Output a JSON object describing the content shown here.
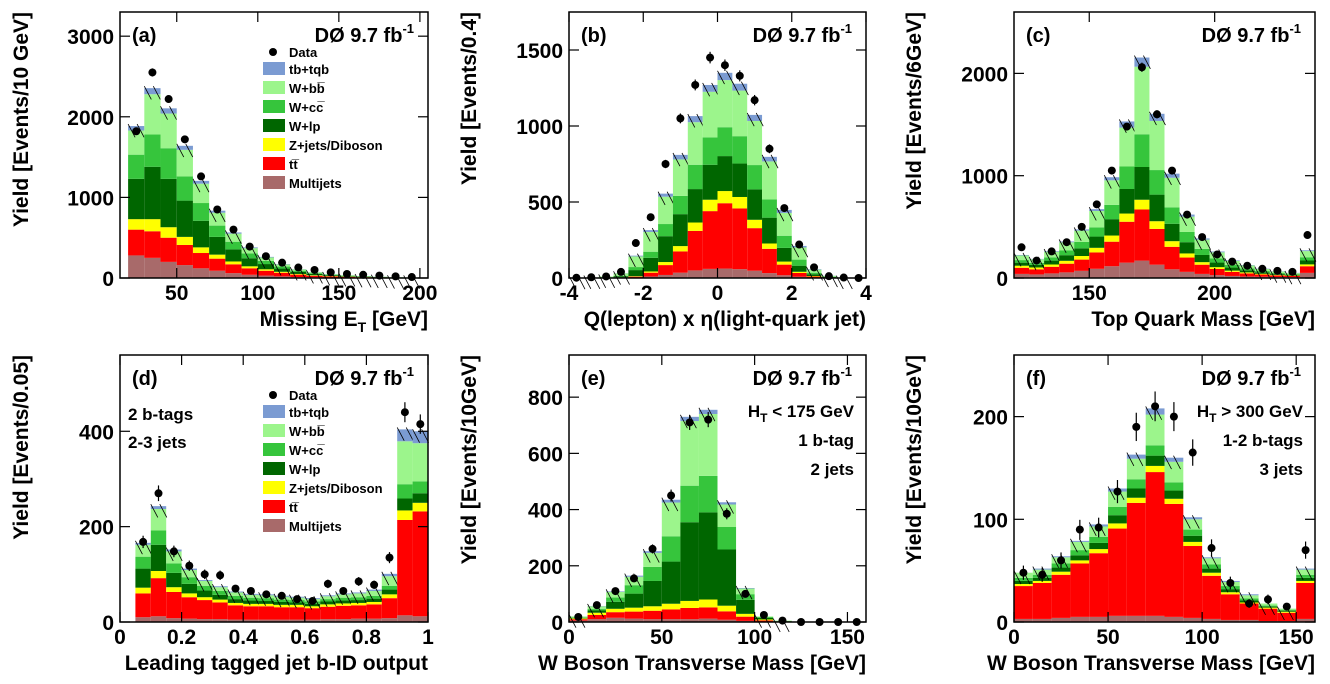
{
  "colors": {
    "tb": "#7b9bd2",
    "wbb": "#9cf58c",
    "wcc": "#36c53c",
    "wlp": "#006600",
    "zjets": "#ffff00",
    "ttbar": "#ff0000",
    "multijets": "#a86a6a"
  },
  "legend_labels": {
    "data": "Data",
    "tb": "tb+tqb",
    "wbb": "W+bb̅",
    "wcc": "W+cc̅",
    "wlp": "W+lp",
    "zjets": "Z+jets/Diboson",
    "ttbar": "tt̅",
    "multijets": "Multijets"
  },
  "chart_data": [
    {
      "type": "bar",
      "stacked": true,
      "panel_label": "(a)",
      "experiment": "DØ  9.7 fb",
      "lumi_exp": "-1",
      "ylabel": "Yield [Events/10 GeV]",
      "xlabel": "Missing E",
      "xlabel_sub": "T",
      "xlabel_tail": " [GeV]",
      "xlim": [
        15,
        205
      ],
      "ylim": [
        0,
        3300
      ],
      "xticks": [
        50,
        100,
        150,
        200
      ],
      "yticks": [
        0,
        1000,
        2000,
        3000
      ],
      "bin_edges": [
        20,
        30,
        40,
        50,
        60,
        70,
        80,
        90,
        100,
        110,
        120,
        130,
        140,
        150,
        160,
        170,
        180,
        190,
        200
      ],
      "stack": {
        "multijets": [
          280,
          250,
          200,
          160,
          120,
          90,
          60,
          40,
          30,
          20,
          12,
          8,
          5,
          4,
          3,
          2,
          1,
          1
        ],
        "ttbar": [
          320,
          330,
          300,
          250,
          190,
          150,
          110,
          80,
          60,
          45,
          30,
          20,
          15,
          10,
          7,
          5,
          3,
          2
        ],
        "zjets": [
          130,
          150,
          130,
          100,
          70,
          50,
          35,
          25,
          18,
          12,
          8,
          6,
          4,
          3,
          2,
          2,
          1,
          1
        ],
        "wlp": [
          500,
          650,
          600,
          450,
          330,
          220,
          150,
          100,
          65,
          40,
          25,
          16,
          10,
          7,
          5,
          3,
          2,
          1
        ],
        "wcc": [
          300,
          400,
          380,
          300,
          220,
          140,
          95,
          60,
          40,
          25,
          16,
          10,
          7,
          5,
          3,
          2,
          1,
          1
        ],
        "wbb": [
          300,
          500,
          430,
          330,
          240,
          160,
          100,
          65,
          42,
          25,
          16,
          10,
          7,
          5,
          3,
          2,
          1,
          1
        ],
        "tb": [
          55,
          75,
          65,
          50,
          35,
          25,
          15,
          10,
          7,
          5,
          3,
          2,
          2,
          1,
          1,
          1,
          0,
          0
        ]
      },
      "data": [
        1820,
        2550,
        2220,
        1720,
        1260,
        850,
        600,
        390,
        270,
        190,
        130,
        100,
        70,
        50,
        40,
        30,
        20,
        12
      ],
      "legend": true,
      "legend_pos": "top-right",
      "annotations": []
    },
    {
      "type": "bar",
      "stacked": true,
      "panel_label": "(b)",
      "experiment": "DØ  9.7 fb",
      "lumi_exp": "-1",
      "ylabel": "Yield [Events/0.4]",
      "xlabel": "Q(lepton) x η(light-quark jet)",
      "xlabel_sub": "",
      "xlabel_tail": "",
      "xlim": [
        -4,
        4
      ],
      "ylim": [
        0,
        1750
      ],
      "xticks": [
        -4,
        -2,
        0,
        2,
        4
      ],
      "yticks": [
        0,
        500,
        1000,
        1500
      ],
      "bin_edges": [
        -4,
        -3.6,
        -3.2,
        -2.8,
        -2.4,
        -2,
        -1.6,
        -1.2,
        -0.8,
        -0.4,
        0,
        0.4,
        0.8,
        1.2,
        1.6,
        2,
        2.4,
        2.8,
        3.2,
        3.6,
        4
      ],
      "stack": {
        "multijets": [
          0,
          0,
          0,
          1,
          3,
          10,
          20,
          35,
          50,
          60,
          62,
          58,
          48,
          32,
          18,
          8,
          3,
          1,
          0,
          0
        ],
        "ttbar": [
          0,
          0,
          1,
          2,
          6,
          25,
          65,
          140,
          260,
          380,
          430,
          400,
          280,
          160,
          70,
          25,
          7,
          2,
          0,
          0
        ],
        "zjets": [
          0,
          0,
          0,
          1,
          3,
          8,
          20,
          35,
          55,
          75,
          80,
          75,
          55,
          35,
          20,
          8,
          3,
          1,
          0,
          0
        ],
        "wlp": [
          0,
          1,
          3,
          8,
          40,
          90,
          170,
          210,
          220,
          230,
          230,
          220,
          200,
          170,
          90,
          40,
          12,
          3,
          1,
          0
        ],
        "wcc": [
          0,
          0,
          1,
          3,
          20,
          40,
          80,
          120,
          160,
          180,
          190,
          180,
          160,
          120,
          80,
          40,
          10,
          2,
          0,
          0
        ],
        "wbb": [
          1,
          2,
          5,
          15,
          70,
          130,
          180,
          240,
          280,
          300,
          310,
          300,
          290,
          250,
          150,
          80,
          20,
          5,
          1,
          0
        ],
        "tb": [
          0,
          0,
          0,
          1,
          5,
          12,
          20,
          30,
          40,
          45,
          48,
          45,
          40,
          30,
          20,
          10,
          3,
          1,
          0,
          0
        ]
      },
      "data": [
        2,
        5,
        10,
        40,
        230,
        400,
        750,
        1050,
        1270,
        1450,
        1400,
        1330,
        1170,
        850,
        460,
        220,
        70,
        12,
        3,
        0
      ],
      "legend": false,
      "legend_pos": "",
      "annotations": []
    },
    {
      "type": "bar",
      "stacked": true,
      "panel_label": "(c)",
      "experiment": "DØ  9.7 fb",
      "lumi_exp": "-1",
      "ylabel": "Yield [Events/6GeV]",
      "xlabel": "Top Quark Mass [GeV]",
      "xlabel_sub": "",
      "xlabel_tail": "",
      "xlim": [
        120,
        240
      ],
      "ylim": [
        0,
        2600
      ],
      "xticks": [
        150,
        200
      ],
      "yticks": [
        0,
        1000,
        2000
      ],
      "bin_edges": [
        120,
        126,
        132,
        138,
        144,
        150,
        156,
        162,
        168,
        174,
        180,
        186,
        192,
        198,
        204,
        210,
        216,
        222,
        228,
        234,
        240
      ],
      "stack": {
        "multijets": [
          40,
          35,
          45,
          55,
          70,
          90,
          115,
          150,
          170,
          130,
          85,
          60,
          40,
          28,
          20,
          15,
          12,
          10,
          8,
          50
        ],
        "ttbar": [
          60,
          50,
          65,
          85,
          110,
          160,
          240,
          400,
          500,
          350,
          220,
          140,
          90,
          60,
          40,
          30,
          22,
          16,
          12,
          65
        ],
        "zjets": [
          20,
          18,
          22,
          28,
          35,
          45,
          60,
          80,
          95,
          75,
          55,
          40,
          25,
          18,
          12,
          10,
          7,
          5,
          4,
          18
        ],
        "wlp": [
          30,
          25,
          38,
          55,
          75,
          110,
          160,
          240,
          320,
          260,
          170,
          110,
          70,
          45,
          30,
          20,
          15,
          10,
          8,
          38
        ],
        "wcc": [
          25,
          20,
          32,
          46,
          63,
          90,
          140,
          220,
          320,
          240,
          160,
          100,
          60,
          40,
          25,
          18,
          12,
          8,
          6,
          32
        ],
        "wbb": [
          45,
          35,
          55,
          80,
          110,
          160,
          240,
          380,
          660,
          480,
          290,
          150,
          90,
          60,
          40,
          30,
          20,
          14,
          10,
          60
        ],
        "tb": [
          5,
          4,
          6,
          8,
          12,
          18,
          30,
          60,
          90,
          70,
          40,
          20,
          12,
          8,
          6,
          4,
          3,
          2,
          2,
          8
        ]
      },
      "data": [
        300,
        170,
        260,
        350,
        500,
        720,
        1050,
        1480,
        2060,
        1600,
        1050,
        620,
        400,
        230,
        160,
        120,
        90,
        70,
        60,
        420
      ],
      "legend": false,
      "legend_pos": "",
      "annotations": []
    },
    {
      "type": "bar",
      "stacked": true,
      "panel_label": "(d)",
      "experiment": "DØ  9.7 fb",
      "lumi_exp": "-1",
      "ylabel": "Yield [Events/0.05]",
      "xlabel": "Leading tagged jet b-ID output",
      "xlabel_sub": "",
      "xlabel_tail": "",
      "xlim": [
        0,
        1
      ],
      "ylim": [
        0,
        560
      ],
      "xticks": [
        0,
        0.2,
        0.4,
        0.6,
        0.8,
        1
      ],
      "yticks": [
        0,
        200,
        400
      ],
      "bin_edges": [
        0.05,
        0.1,
        0.15,
        0.2,
        0.25,
        0.3,
        0.35,
        0.4,
        0.45,
        0.5,
        0.55,
        0.6,
        0.65,
        0.7,
        0.75,
        0.8,
        0.85,
        0.9,
        0.95,
        1.0
      ],
      "stack": {
        "multijets": [
          10,
          12,
          8,
          7,
          6,
          6,
          5,
          5,
          5,
          5,
          5,
          5,
          6,
          6,
          7,
          7,
          8,
          14,
          12
        ],
        "ttbar": [
          50,
          80,
          55,
          45,
          40,
          35,
          30,
          28,
          28,
          26,
          26,
          24,
          26,
          28,
          28,
          30,
          42,
          200,
          220
        ],
        "zjets": [
          12,
          15,
          10,
          8,
          6,
          6,
          5,
          5,
          5,
          5,
          5,
          4,
          5,
          5,
          5,
          5,
          8,
          20,
          18
        ],
        "wlp": [
          40,
          55,
          30,
          20,
          14,
          10,
          8,
          7,
          6,
          6,
          5,
          5,
          6,
          6,
          6,
          7,
          10,
          25,
          20
        ],
        "wcc": [
          25,
          30,
          20,
          14,
          10,
          8,
          7,
          6,
          6,
          5,
          5,
          5,
          5,
          6,
          6,
          6,
          8,
          30,
          25
        ],
        "wbb": [
          25,
          45,
          25,
          15,
          10,
          8,
          7,
          6,
          6,
          6,
          5,
          5,
          6,
          7,
          8,
          10,
          20,
          90,
          80
        ],
        "tb": [
          4,
          6,
          4,
          3,
          2,
          2,
          2,
          2,
          2,
          2,
          2,
          2,
          2,
          2,
          2,
          3,
          5,
          25,
          25
        ]
      },
      "data": [
        168,
        270,
        148,
        118,
        100,
        98,
        70,
        65,
        58,
        55,
        48,
        44,
        80,
        65,
        85,
        78,
        135,
        440,
        415
      ],
      "legend": true,
      "legend_pos": "top-right",
      "annotations": [
        "2 b-tags",
        "2-3 jets"
      ]
    },
    {
      "type": "bar",
      "stacked": true,
      "panel_label": "(e)",
      "experiment": "DØ  9.7 fb",
      "lumi_exp": "-1",
      "ylabel": "Yield [Events/10GeV]",
      "xlabel": "W Boson Transverse Mass [GeV]",
      "xlabel_sub": "",
      "xlabel_tail": "",
      "xlim": [
        0,
        160
      ],
      "ylim": [
        0,
        950
      ],
      "xticks": [
        0,
        50,
        100,
        150
      ],
      "yticks": [
        0,
        200,
        400,
        600,
        800
      ],
      "bin_edges": [
        0,
        10,
        20,
        30,
        40,
        50,
        60,
        70,
        80,
        90,
        100,
        110,
        120,
        130,
        140,
        150,
        160
      ],
      "stack": {
        "multijets": [
          5,
          10,
          15,
          12,
          10,
          10,
          10,
          12,
          8,
          4,
          1,
          0,
          0,
          0,
          0,
          0
        ],
        "ttbar": [
          5,
          15,
          20,
          25,
          30,
          35,
          40,
          40,
          30,
          15,
          5,
          1,
          0,
          0,
          0,
          0
        ],
        "zjets": [
          3,
          8,
          12,
          14,
          16,
          20,
          25,
          28,
          20,
          10,
          3,
          1,
          0,
          0,
          0,
          0
        ],
        "wlp": [
          2,
          8,
          25,
          50,
          90,
          150,
          280,
          310,
          200,
          50,
          6,
          1,
          0,
          0,
          0,
          0
        ],
        "wcc": [
          2,
          5,
          15,
          30,
          50,
          90,
          130,
          130,
          80,
          20,
          3,
          1,
          0,
          0,
          0,
          0
        ],
        "wbb": [
          3,
          10,
          20,
          30,
          50,
          120,
          230,
          220,
          80,
          20,
          2,
          1,
          0,
          0,
          0,
          0
        ],
        "tb": [
          0,
          1,
          2,
          4,
          6,
          10,
          15,
          15,
          8,
          2,
          0,
          0,
          0,
          0,
          0,
          0
        ]
      },
      "data": [
        18,
        60,
        110,
        155,
        260,
        450,
        710,
        720,
        385,
        100,
        25,
        5,
        0,
        0,
        0,
        0
      ],
      "legend": false,
      "legend_pos": "",
      "annotations": [
        "H",
        "T",
        " < 175 GeV",
        "1 b-tag",
        "2 jets"
      ]
    },
    {
      "type": "bar",
      "stacked": true,
      "panel_label": "(f)",
      "experiment": "DØ  9.7 fb",
      "lumi_exp": "-1",
      "ylabel": "Yield [Events/10GeV]",
      "xlabel": "W Boson Transverse Mass [GeV]",
      "xlabel_sub": "",
      "xlabel_tail": "",
      "xlim": [
        0,
        160
      ],
      "ylim": [
        0,
        260
      ],
      "xticks": [
        0,
        50,
        100,
        150
      ],
      "yticks": [
        0,
        100,
        200
      ],
      "bin_edges": [
        0,
        10,
        20,
        30,
        40,
        50,
        60,
        70,
        80,
        90,
        100,
        110,
        120,
        130,
        140,
        150,
        160
      ],
      "stack": {
        "multijets": [
          3,
          3,
          4,
          5,
          5,
          6,
          6,
          6,
          5,
          4,
          3,
          2,
          2,
          1,
          1,
          3
        ],
        "ttbar": [
          32,
          35,
          42,
          52,
          62,
          85,
          110,
          140,
          110,
          70,
          42,
          25,
          16,
          12,
          8,
          35
        ],
        "zjets": [
          2,
          2,
          3,
          3,
          4,
          5,
          5,
          6,
          5,
          4,
          3,
          2,
          1,
          1,
          1,
          2
        ],
        "wlp": [
          3,
          3,
          4,
          5,
          6,
          8,
          9,
          10,
          8,
          6,
          4,
          3,
          2,
          1,
          1,
          3
        ],
        "wcc": [
          3,
          3,
          4,
          5,
          6,
          8,
          9,
          10,
          8,
          6,
          4,
          3,
          2,
          1,
          1,
          3
        ],
        "wbb": [
          5,
          5,
          6,
          8,
          10,
          15,
          20,
          30,
          20,
          10,
          6,
          4,
          3,
          2,
          1,
          5
        ],
        "tb": [
          0,
          1,
          1,
          1,
          2,
          3,
          4,
          6,
          4,
          2,
          1,
          1,
          1,
          0,
          0,
          1
        ]
      },
      "data": [
        48,
        46,
        60,
        90,
        92,
        127,
        190,
        210,
        200,
        165,
        72,
        38,
        18,
        22,
        15,
        70
      ],
      "legend": false,
      "legend_pos": "",
      "annotations": [
        "H",
        "T",
        " > 300 GeV",
        "1-2 b-tags",
        "3 jets"
      ]
    }
  ]
}
